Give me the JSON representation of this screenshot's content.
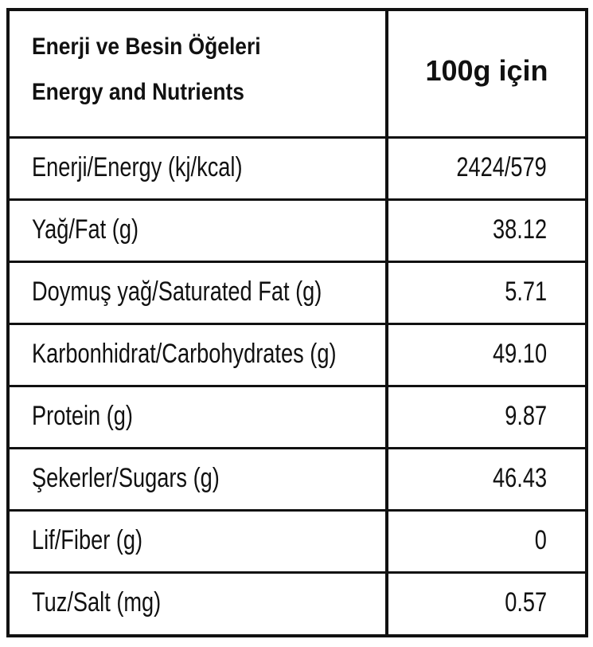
{
  "header": {
    "left": [
      "Enerji ve Besin Öğeleri",
      "Energy and Nutrients"
    ],
    "right": "100g için"
  },
  "table": {
    "rows": [
      [
        "Enerji/Energy (kj/kcal)",
        "2424/579"
      ],
      [
        "Yağ/Fat (g)",
        "38.12"
      ],
      [
        "Doymuş yağ/Saturated Fat (g)",
        "5.71"
      ],
      [
        "Karbonhidrat/Carbohydrates (g)",
        "49.10"
      ],
      [
        "Protein (g)",
        "9.87"
      ],
      [
        "Şekerler/Sugars (g)",
        "46.43"
      ],
      [
        "Lif/Fiber (g)",
        "0"
      ],
      [
        "Tuz/Salt (mg)",
        "0.57"
      ]
    ]
  }
}
